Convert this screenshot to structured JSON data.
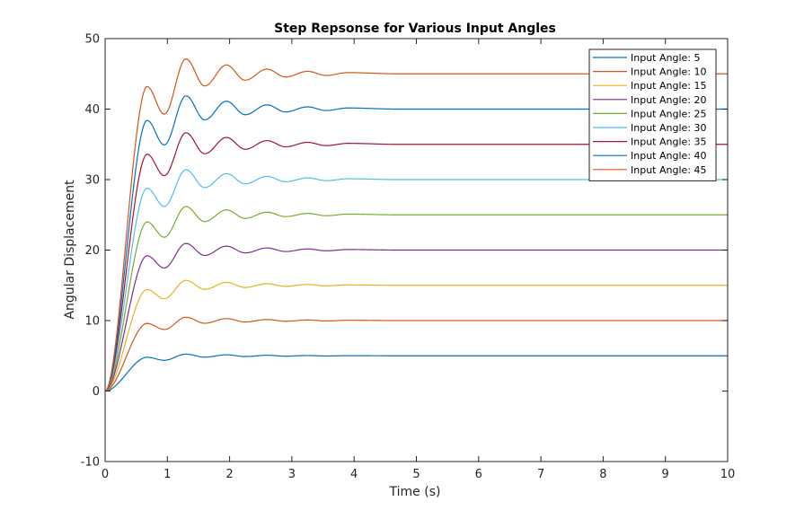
{
  "chart_data": {
    "type": "line",
    "title": "Step Repsonse for Various Input Angles",
    "xlabel": "Time (s)",
    "ylabel": "Angular Displacement",
    "xlim": [
      0,
      10
    ],
    "ylim": [
      -10,
      50
    ],
    "xticks": [
      0,
      1,
      2,
      3,
      4,
      5,
      6,
      7,
      8,
      9,
      10
    ],
    "yticks": [
      -10,
      0,
      10,
      20,
      30,
      40,
      50
    ],
    "grid": false,
    "legend_position": "top-right",
    "response_shape": {
      "normalized_peak_times": [
        0.675,
        1.3,
        1.95,
        2.6,
        3.25,
        3.9
      ],
      "normalized_peak_values": [
        0.96,
        1.047,
        1.028,
        1.015,
        1.008,
        1.004
      ],
      "normalized_trough_times": [
        0.95,
        1.6,
        2.25,
        2.9,
        3.55
      ],
      "normalized_trough_values": [
        0.873,
        0.962,
        0.98,
        0.99,
        0.995
      ]
    },
    "series": [
      {
        "name": "Input Angle: 5",
        "final_value": 5,
        "color": "#0072BD"
      },
      {
        "name": "Input Angle: 10",
        "final_value": 10,
        "color": "#D95319"
      },
      {
        "name": "Input Angle: 15",
        "final_value": 15,
        "color": "#EDB120"
      },
      {
        "name": "Input Angle: 20",
        "final_value": 20,
        "color": "#7E2F8E"
      },
      {
        "name": "Input Angle: 25",
        "final_value": 25,
        "color": "#77AC30"
      },
      {
        "name": "Input Angle: 30",
        "final_value": 30,
        "color": "#4DBEEE"
      },
      {
        "name": "Input Angle: 35",
        "final_value": 35,
        "color": "#A2142F"
      },
      {
        "name": "Input Angle: 40",
        "final_value": 40,
        "color": "#0072BD"
      },
      {
        "name": "Input Angle: 45",
        "final_value": 45,
        "color": "#D95319"
      }
    ]
  }
}
